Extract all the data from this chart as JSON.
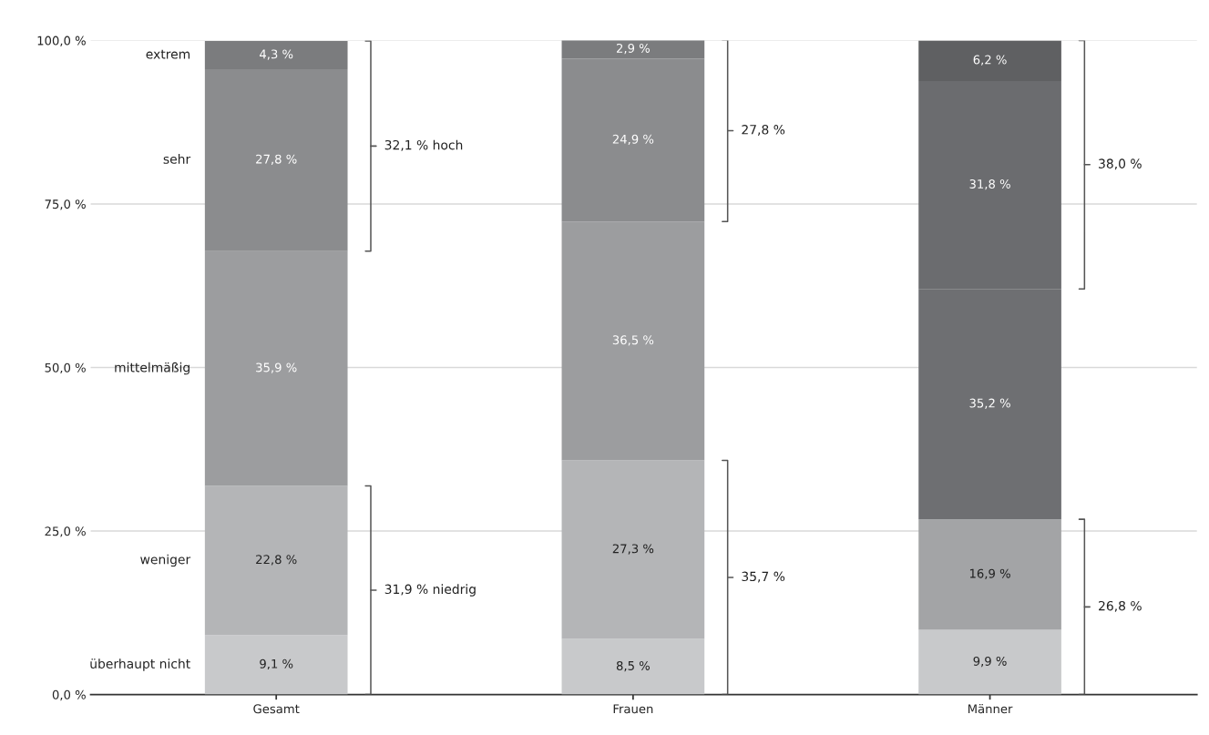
{
  "chart_data": {
    "type": "bar",
    "stacked": true,
    "categories": [
      "Gesamt",
      "Frauen",
      "Männer"
    ],
    "series": [
      {
        "name": "überhaupt nicht",
        "colors": [
          "#c8c9cb",
          "#c8c9cb",
          "#c8c9cb"
        ],
        "values": [
          9.1,
          8.5,
          9.9
        ],
        "value_labels": [
          "9,1 %",
          "8,5 %",
          "9,9 %"
        ]
      },
      {
        "name": "weniger",
        "colors": [
          "#b4b5b7",
          "#b4b5b7",
          "#a3a4a6"
        ],
        "values": [
          22.8,
          27.3,
          16.9
        ],
        "value_labels": [
          "22,8 %",
          "27,3 %",
          "16,9 %"
        ]
      },
      {
        "name": "mittelmäßig",
        "colors": [
          "#9c9d9f",
          "#9c9d9f",
          "#6e6f72"
        ],
        "values": [
          35.9,
          36.5,
          35.2
        ],
        "value_labels": [
          "35,9 %",
          "36,5 %",
          "35,2 %"
        ]
      },
      {
        "name": "sehr",
        "colors": [
          "#8b8c8e",
          "#8b8c8e",
          "#6b6c6f"
        ],
        "values": [
          27.8,
          24.9,
          31.8
        ],
        "value_labels": [
          "27,8 %",
          "24,9 %",
          "31,8 %"
        ]
      },
      {
        "name": "extrem",
        "colors": [
          "#7b7c7e",
          "#7b7c7e",
          "#5f6062"
        ],
        "values": [
          4.3,
          2.9,
          6.2
        ],
        "value_labels": [
          "4,3 %",
          "2,9 %",
          "6,2 %"
        ]
      }
    ],
    "ylim": [
      0,
      100
    ],
    "yticks": [
      {
        "value": 0,
        "label": "0,0 %"
      },
      {
        "value": 25,
        "label": "25,0 %"
      },
      {
        "value": 50,
        "label": "50,0 %"
      },
      {
        "value": 75,
        "label": "75,0 %"
      },
      {
        "value": 100,
        "label": "100,0 %"
      }
    ],
    "grid": "y",
    "legend": false,
    "annotations": [
      "32,1 % hoch",
      "31,9 % niedrig",
      "27,8 %",
      "35,7 %",
      "38,0 %",
      "26,8 %"
    ]
  }
}
